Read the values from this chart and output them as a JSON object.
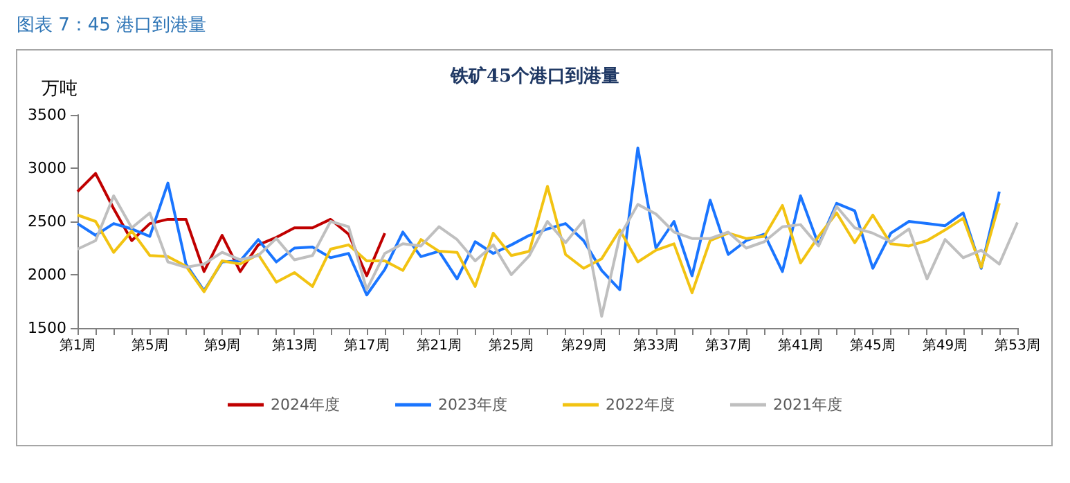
{
  "chart_data": {
    "type": "line",
    "title": "铁矿45个港口到港量",
    "ylabel": "万吨",
    "annotations": [
      "图表 7：45 港口到港量"
    ],
    "categories": [
      "第1周",
      null,
      null,
      null,
      "第5周",
      null,
      null,
      null,
      "第9周",
      null,
      null,
      null,
      "第13周",
      null,
      null,
      null,
      "第17周",
      null,
      null,
      null,
      "第21周",
      null,
      null,
      null,
      "第25周",
      null,
      null,
      null,
      "第29周",
      null,
      null,
      null,
      "第33周",
      null,
      null,
      null,
      "第37周",
      null,
      null,
      null,
      "第41周",
      null,
      null,
      null,
      "第45周",
      null,
      null,
      null,
      "第49周",
      null,
      null,
      null,
      "第53周"
    ],
    "series": [
      {
        "name": "2024年度",
        "color": "#c00000",
        "values": [
          2780,
          2950,
          2620,
          2320,
          2480,
          2520,
          2520,
          2030,
          2370,
          2030,
          2280,
          2350,
          2440,
          2440,
          2520,
          2380,
          1990,
          2390,
          null,
          null,
          null,
          null,
          null,
          null,
          null,
          null,
          null,
          null,
          null,
          null,
          null,
          null,
          null,
          null,
          null,
          null,
          null,
          null,
          null,
          null,
          null,
          null,
          null,
          null,
          null,
          null,
          null,
          null,
          null,
          null,
          null,
          null,
          null
        ]
      },
      {
        "name": "2023年度",
        "color": "#1a75ff",
        "values": [
          2480,
          2370,
          2480,
          2430,
          2360,
          2860,
          2100,
          1850,
          2120,
          2130,
          2330,
          2120,
          2250,
          2260,
          2160,
          2200,
          1810,
          2050,
          2400,
          2170,
          2220,
          1960,
          2310,
          2200,
          2280,
          2370,
          2430,
          2480,
          2320,
          2040,
          1860,
          3190,
          2250,
          2500,
          1990,
          2700,
          2190,
          2320,
          2380,
          2030,
          2740,
          2280,
          2670,
          2600,
          2060,
          2390,
          2500,
          2480,
          2460,
          2580,
          2060,
          2780,
          null
        ]
      },
      {
        "name": "2022年度",
        "color": "#f2c312",
        "values": [
          2560,
          2500,
          2210,
          2410,
          2180,
          2170,
          2080,
          1840,
          2130,
          2100,
          2190,
          1930,
          2020,
          1890,
          2240,
          2280,
          2130,
          2130,
          2040,
          2330,
          2220,
          2210,
          1890,
          2390,
          2180,
          2220,
          2830,
          2190,
          2060,
          2150,
          2420,
          2120,
          2230,
          2290,
          1830,
          2320,
          2390,
          2340,
          2360,
          2650,
          2110,
          2360,
          2580,
          2300,
          2560,
          2290,
          2270,
          2320,
          2420,
          2530,
          2070,
          2670,
          null
        ]
      },
      {
        "name": "2021年度",
        "color": "#bfbfbf",
        "values": [
          2240,
          2320,
          2740,
          2440,
          2580,
          2120,
          2070,
          2100,
          2210,
          2140,
          2180,
          2340,
          2140,
          2180,
          2500,
          2450,
          1860,
          2200,
          2290,
          2270,
          2450,
          2330,
          2130,
          2280,
          2000,
          2180,
          2500,
          2300,
          2510,
          1610,
          2360,
          2660,
          2570,
          2400,
          2340,
          2340,
          2400,
          2250,
          2310,
          2450,
          2470,
          2270,
          2640,
          2440,
          2390,
          2310,
          2430,
          1960,
          2330,
          2160,
          2230,
          2100,
          2490
        ]
      }
    ],
    "ylim": [
      1500,
      3500
    ],
    "yticks": [
      1500,
      2000,
      2500,
      3000,
      3500
    ],
    "grid": false,
    "legend": "bottom",
    "marker": "none",
    "line_style": "solid"
  }
}
